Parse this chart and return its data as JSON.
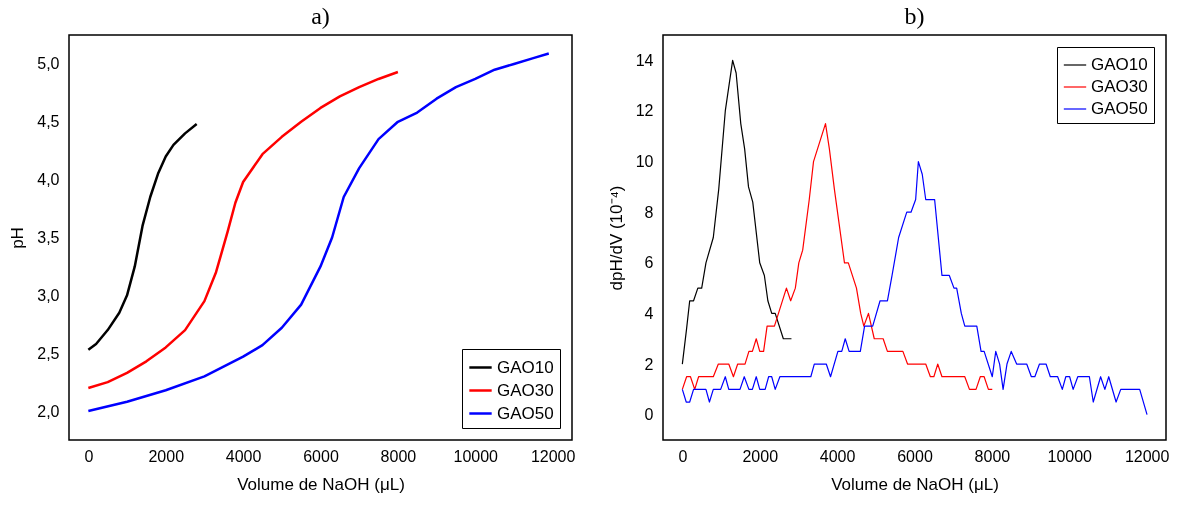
{
  "chart_data": [
    {
      "type": "line",
      "title": "a)",
      "xlabel": "Volume de NaOH (μL)",
      "ylabel": "pH",
      "xlim": [
        -500,
        12500
      ],
      "ylim": [
        1.75,
        5.25
      ],
      "xticks": [
        0,
        2000,
        4000,
        6000,
        8000,
        10000,
        12000
      ],
      "yticks": [
        {
          "value": 2,
          "label": "2,0"
        },
        {
          "value": 2.5,
          "label": "2,5"
        },
        {
          "value": 3,
          "label": "3,0"
        },
        {
          "value": 3.5,
          "label": "3,5"
        },
        {
          "value": 4,
          "label": "4,0"
        },
        {
          "value": 4.5,
          "label": "4,5"
        },
        {
          "value": 5,
          "label": "5,0"
        }
      ],
      "grid": false,
      "legend": "bottom right",
      "series": [
        {
          "name": "GAO10",
          "color": "#000000",
          "x": [
            0,
            200,
            500,
            800,
            1000,
            1200,
            1400,
            1600,
            1800,
            2000,
            2200,
            2500,
            2800
          ],
          "values": [
            2.53,
            2.58,
            2.7,
            2.85,
            3.0,
            3.25,
            3.6,
            3.85,
            4.05,
            4.2,
            4.3,
            4.4,
            4.48
          ]
        },
        {
          "name": "GAO30",
          "color": "#ff0000",
          "x": [
            0,
            500,
            1000,
            1500,
            2000,
            2500,
            3000,
            3300,
            3600,
            3800,
            4000,
            4500,
            5000,
            5500,
            6000,
            6500,
            7000,
            7500,
            8000
          ],
          "values": [
            2.2,
            2.25,
            2.33,
            2.43,
            2.55,
            2.7,
            2.95,
            3.2,
            3.55,
            3.8,
            3.98,
            4.22,
            4.37,
            4.5,
            4.62,
            4.72,
            4.8,
            4.87,
            4.93
          ]
        },
        {
          "name": "GAO50",
          "color": "#0000ff",
          "x": [
            0,
            1000,
            2000,
            3000,
            4000,
            4500,
            5000,
            5500,
            6000,
            6300,
            6600,
            7000,
            7500,
            8000,
            8500,
            9000,
            9500,
            10000,
            10500,
            11000,
            11500,
            11900
          ],
          "values": [
            2.0,
            2.08,
            2.18,
            2.3,
            2.47,
            2.57,
            2.72,
            2.92,
            3.25,
            3.5,
            3.85,
            4.1,
            4.35,
            4.5,
            4.58,
            4.7,
            4.8,
            4.87,
            4.95,
            5.0,
            5.05,
            5.09
          ]
        }
      ]
    },
    {
      "type": "line",
      "title": "b)",
      "xlabel": "Volume de NaOH (μL)",
      "ylabel": "dpH/dV (10⁻⁴)",
      "xlim": [
        -500,
        12500
      ],
      "ylim": [
        -1,
        15
      ],
      "xticks": [
        0,
        2000,
        4000,
        6000,
        8000,
        10000,
        12000
      ],
      "yticks": [
        0,
        2,
        4,
        6,
        8,
        10,
        12,
        14
      ],
      "grid": false,
      "legend": "top right",
      "series": [
        {
          "name": "GAO10",
          "color": "#000000",
          "x": [
            0,
            110,
            190,
            290,
            400,
            500,
            610,
            800,
            940,
            1110,
            1300,
            1390,
            1510,
            1610,
            1710,
            1820,
            2000,
            2120,
            2210,
            2310,
            2400,
            2610,
            2820
          ],
          "values": [
            2,
            3.4,
            4.5,
            4.5,
            5,
            5,
            6,
            7,
            8.9,
            12,
            14,
            13.5,
            11.5,
            10.5,
            9,
            8.4,
            6,
            5.5,
            4.5,
            4,
            4,
            3,
            3
          ]
        },
        {
          "name": "GAO30",
          "color": "#ff0000",
          "x": [
            0,
            110,
            210,
            320,
            420,
            800,
            930,
            1200,
            1320,
            1430,
            1620,
            1720,
            1810,
            1910,
            2000,
            2100,
            2190,
            2380,
            2690,
            2800,
            2920,
            3010,
            3110,
            3280,
            3390,
            3700,
            3800,
            3930,
            4190,
            4290,
            4500,
            4610,
            4690,
            4810,
            4960,
            5190,
            5300,
            5700,
            5820,
            6290,
            6410,
            6500,
            6600,
            6710,
            7300,
            7420,
            7590,
            7700,
            7800,
            7910,
            8010
          ],
          "values": [
            1,
            1.5,
            1.5,
            1,
            1.5,
            1.5,
            2,
            2,
            1.5,
            2,
            2,
            2.5,
            2.5,
            3,
            2.5,
            2.5,
            3.5,
            3.5,
            5,
            4.5,
            5,
            6,
            6.5,
            8.5,
            10,
            11.5,
            10.5,
            8.9,
            6,
            6,
            5,
            4,
            3.5,
            4,
            3,
            3,
            2.5,
            2.5,
            2,
            2,
            1.5,
            1.5,
            2,
            1.5,
            1.5,
            1,
            1,
            1.5,
            1.5,
            1,
            1
          ]
        },
        {
          "name": "GAO50",
          "color": "#0000ff",
          "x": [
            0,
            100,
            190,
            290,
            610,
            700,
            800,
            990,
            1110,
            1200,
            1490,
            1600,
            1720,
            1810,
            1910,
            2000,
            2140,
            2230,
            2310,
            2400,
            2520,
            3320,
            3410,
            3720,
            3830,
            4020,
            4120,
            4210,
            4310,
            4600,
            4710,
            4920,
            5110,
            5300,
            5420,
            5590,
            5800,
            5910,
            6030,
            6100,
            6200,
            6290,
            6520,
            6710,
            6900,
            7020,
            7090,
            7210,
            7300,
            7610,
            7720,
            7800,
            8010,
            8100,
            8200,
            8290,
            8390,
            8500,
            8640,
            8900,
            9020,
            9110,
            9230,
            9400,
            9510,
            9700,
            9820,
            9910,
            10010,
            10100,
            10220,
            10520,
            10620,
            10810,
            10920,
            11020,
            11210,
            11330,
            11820,
            12010
          ],
          "values": [
            1,
            0.5,
            0.5,
            1,
            1,
            0.5,
            1,
            1,
            1.5,
            1,
            1,
            1.5,
            1,
            1,
            1.5,
            1,
            1,
            1.5,
            1.5,
            1,
            1.5,
            1.5,
            2,
            2,
            1.5,
            2.5,
            2.5,
            3,
            2.5,
            2.5,
            3.5,
            3.5,
            4.5,
            4.5,
            5.5,
            7,
            8,
            8,
            8.5,
            10,
            9.5,
            8.5,
            8.5,
            5.5,
            5.5,
            5,
            5,
            4,
            3.5,
            3.5,
            2.5,
            2.5,
            1.5,
            2.5,
            2,
            1,
            2,
            2.5,
            2,
            2,
            1.5,
            1.5,
            2,
            2,
            1.5,
            1.5,
            1,
            1.5,
            1.5,
            1,
            1.5,
            1.5,
            0.5,
            1.5,
            1,
            1.5,
            0.5,
            1,
            1,
            0
          ]
        }
      ]
    }
  ]
}
